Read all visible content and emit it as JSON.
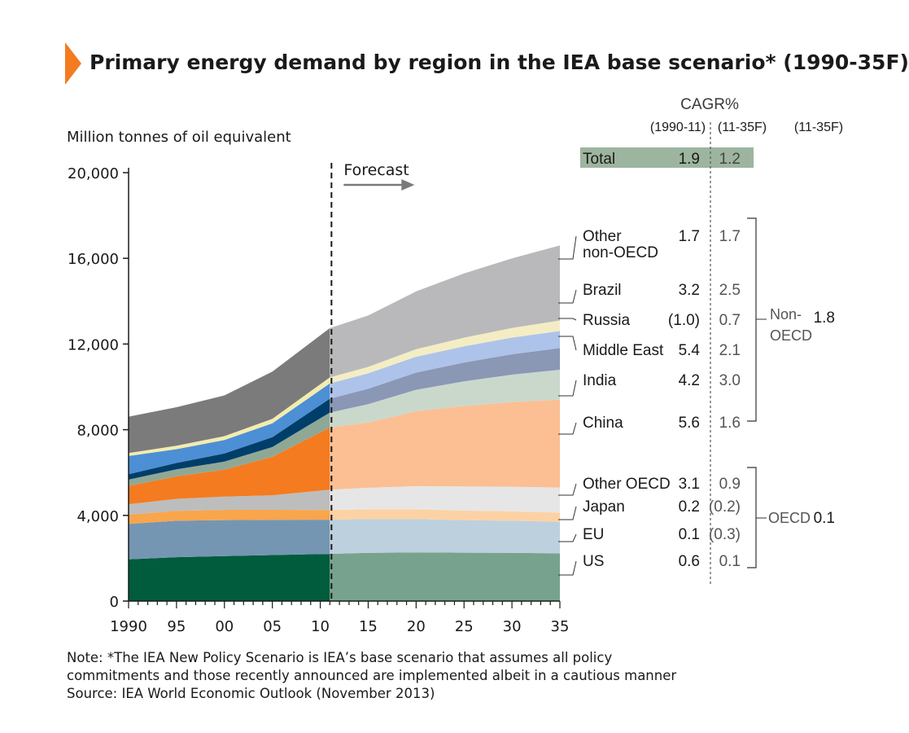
{
  "title": "Primary energy demand by region in the IEA base scenario* (1990-35F)",
  "chart_data": {
    "type": "area",
    "stacked": true,
    "ylabel": "Million tonnes of oil equivalent",
    "xlim": [
      1990,
      2035
    ],
    "ylim": [
      0,
      20000
    ],
    "yticks": [
      0,
      4000,
      8000,
      12000,
      16000,
      20000
    ],
    "ytick_labels": [
      "0",
      "4,000",
      "8,000",
      "12,000",
      "16,000",
      "20,000"
    ],
    "xticks": [
      1990,
      1995,
      2000,
      2005,
      2010,
      2015,
      2020,
      2025,
      2030,
      2035
    ],
    "xtick_labels": [
      "1990",
      "95",
      "00",
      "05",
      "10",
      "15",
      "20",
      "25",
      "30",
      "35"
    ],
    "forecast_start": 2011,
    "forecast_label": "Forecast",
    "x": [
      1990,
      1995,
      2000,
      2005,
      2011,
      2015,
      2020,
      2025,
      2030,
      2035
    ],
    "series": [
      {
        "name": "US",
        "color": "#005c3d",
        "forecast_color": "#77a38e",
        "values": [
          1950,
          2050,
          2100,
          2150,
          2200,
          2250,
          2270,
          2260,
          2250,
          2230
        ]
      },
      {
        "name": "EU",
        "color": "#7596b2",
        "forecast_color": "#bdd0de",
        "values": [
          1650,
          1700,
          1680,
          1640,
          1600,
          1580,
          1560,
          1520,
          1500,
          1470
        ]
      },
      {
        "name": "Japan",
        "color": "#f9a54b",
        "forecast_color": "#fcd2a5",
        "values": [
          430,
          460,
          480,
          470,
          450,
          460,
          455,
          445,
          440,
          430
        ]
      },
      {
        "name": "Other OECD",
        "color": "#bdbdbd",
        "forecast_color": "#e6e6e6",
        "values": [
          490,
          560,
          620,
          680,
          950,
          1000,
          1080,
          1130,
          1150,
          1170
        ]
      },
      {
        "name": "China",
        "color": "#f47b20",
        "forecast_color": "#fbbf93",
        "values": [
          850,
          1050,
          1250,
          1800,
          2900,
          3050,
          3500,
          3750,
          3950,
          4100
        ]
      },
      {
        "name": "India",
        "color": "#8fa896",
        "forecast_color": "#cad8cc",
        "values": [
          300,
          330,
          380,
          450,
          700,
          850,
          1000,
          1150,
          1280,
          1400
        ]
      },
      {
        "name": "Middle East",
        "color": "#003e6a",
        "forecast_color": "#8a97b5",
        "values": [
          250,
          300,
          380,
          460,
          650,
          720,
          800,
          880,
          950,
          1010
        ]
      },
      {
        "name": "Russia",
        "color": "#4d8fd4",
        "forecast_color": "#adc3e9",
        "values": [
          850,
          640,
          630,
          650,
          710,
          720,
          740,
          760,
          780,
          800
        ]
      },
      {
        "name": "Brazil",
        "color": "#f3ecae",
        "forecast_color": "#f4edc4",
        "values": [
          140,
          160,
          180,
          210,
          280,
          300,
          350,
          400,
          450,
          490
        ]
      },
      {
        "name": "Other non-OECD",
        "color": "#7b7b7c",
        "forecast_color": "#b9b9bb",
        "values": [
          1700,
          1800,
          1900,
          2200,
          2300,
          2400,
          2700,
          3000,
          3250,
          3500
        ]
      }
    ]
  },
  "cagr_table": {
    "heading": "CAGR%",
    "col1_header": "(1990-11)",
    "col2_header": "(11-35F)",
    "col3_header": "(11-35F)",
    "total": {
      "label": "Total",
      "v1": "1.9",
      "v2": "1.2"
    },
    "rows": [
      {
        "label": "Other",
        "label2": "non-OECD",
        "v1": "1.7",
        "v2": "1.7"
      },
      {
        "label": "Brazil",
        "v1": "3.2",
        "v2": "2.5"
      },
      {
        "label": "Russia",
        "v1": "(1.0)",
        "v2": "0.7"
      },
      {
        "label": "Middle East",
        "v1": "5.4",
        "v2": "2.1"
      },
      {
        "label": "India",
        "v1": "4.2",
        "v2": "3.0"
      },
      {
        "label": "China",
        "v1": "5.6",
        "v2": "1.6"
      },
      {
        "label": "Other OECD",
        "v1": "3.1",
        "v2": "0.9"
      },
      {
        "label": "Japan",
        "v1": "0.2",
        "v2": "(0.2)"
      },
      {
        "label": "EU",
        "v1": "0.1",
        "v2": "(0.3)"
      },
      {
        "label": "US",
        "v1": "0.6",
        "v2": "0.1"
      }
    ],
    "groups": [
      {
        "label": "Non-",
        "label2": "OECD",
        "value": "1.8"
      },
      {
        "label": "OECD",
        "value": "0.1"
      }
    ]
  },
  "note": "Note: *The IEA New Policy Scenario is IEA’s base scenario that assumes all policy",
  "note2": "commitments and those recently announced are implemented albeit in a cautious manner",
  "source": "Source: IEA World Economic Outlook (November 2013)"
}
